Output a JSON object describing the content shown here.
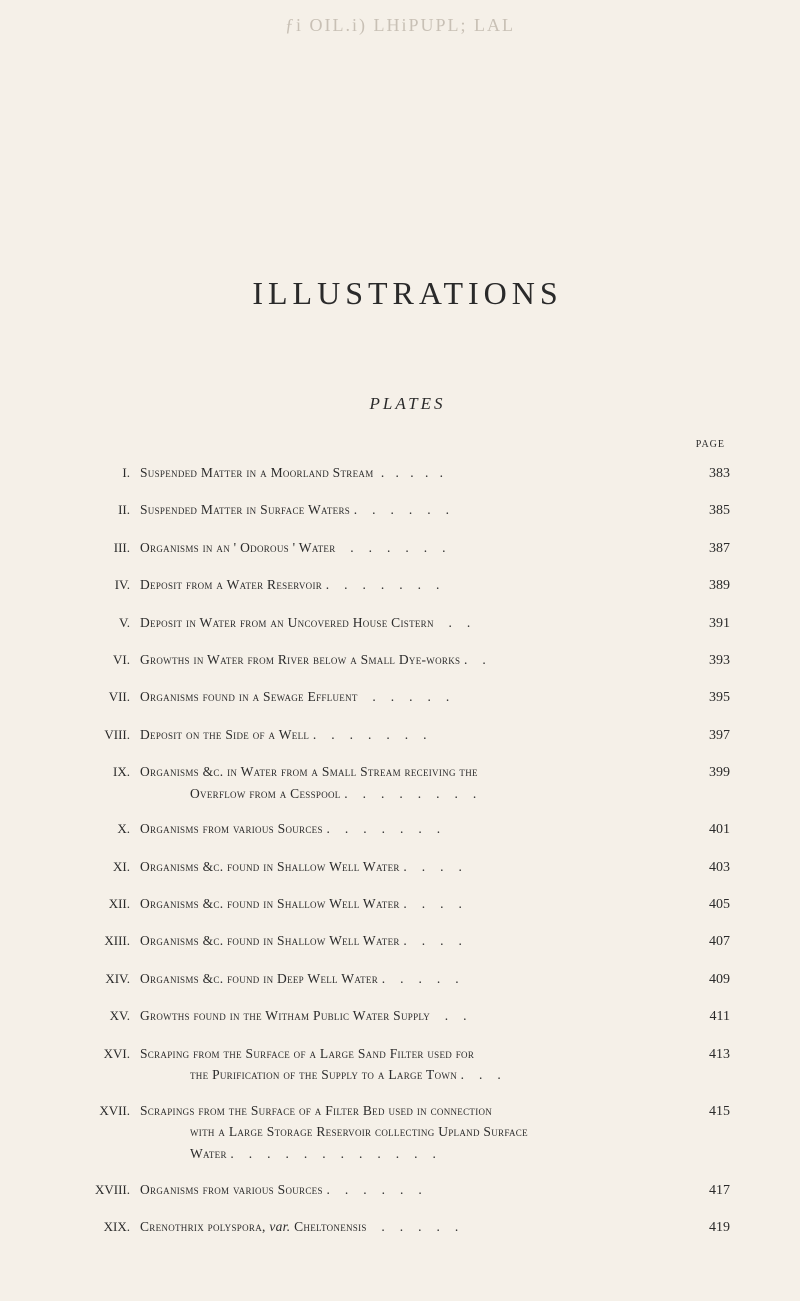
{
  "faded_header_text": "ƒi OIL.i) LHiPUPL; LAL",
  "title": "ILLUSTRATIONS",
  "subtitle": "PLATES",
  "page_label": "PAGE",
  "entries": [
    {
      "roman": "I.",
      "desc": "Suspended Matter in a Moorland Stream",
      "page": "383"
    },
    {
      "roman": "II.",
      "desc": "Suspended Matter in Surface Waters",
      "page": "385"
    },
    {
      "roman": "III.",
      "desc": "Organisms in an ' Odorous ' Water",
      "page": "387"
    },
    {
      "roman": "IV.",
      "desc": "Deposit from a Water Reservoir",
      "page": "389"
    },
    {
      "roman": "V.",
      "desc": "Deposit in Water from an Uncovered House Cistern",
      "page": "391"
    },
    {
      "roman": "VI.",
      "desc": "Growths in Water from River below a Small Dye-works",
      "page": "393"
    },
    {
      "roman": "VII.",
      "desc": "Organisms found in a Sewage Effluent",
      "page": "395"
    },
    {
      "roman": "VIII.",
      "desc": "Deposit on the Side of a Well",
      "page": "397"
    },
    {
      "roman": "IX.",
      "desc": "Organisms &c. in Water from a Small Stream receiving the",
      "cont": "Overflow from a Cesspool",
      "page": "399"
    },
    {
      "roman": "X.",
      "desc": "Organisms from various Sources",
      "page": "401"
    },
    {
      "roman": "XI.",
      "desc": "Organisms &c. found in Shallow Well Water",
      "page": "403"
    },
    {
      "roman": "XII.",
      "desc": "Organisms &c. found in Shallow Well Water",
      "page": "405"
    },
    {
      "roman": "XIII.",
      "desc": "Organisms &c. found in Shallow Well Water",
      "page": "407"
    },
    {
      "roman": "XIV.",
      "desc": "Organisms &c. found in Deep Well Water",
      "page": "409"
    },
    {
      "roman": "XV.",
      "desc": "Growths found in the Witham Public Water Supply",
      "page": "411"
    },
    {
      "roman": "XVI.",
      "desc": "Scraping from the Surface of a Large Sand Filter used for",
      "cont": "the Purification of the Supply to a Large Town",
      "page": "413"
    },
    {
      "roman": "XVII.",
      "desc": "Scrapings from the Surface of a Filter Bed used in connection",
      "cont": "with a Large Storage Reservoir collecting Upland Surface",
      "cont2": "Water",
      "page": "415"
    },
    {
      "roman": "XVIII.",
      "desc": "Organisms from various Sources",
      "page": "417"
    },
    {
      "roman": "XIX.",
      "desc_special": true,
      "desc_part1": "Crenothrix polyspora, ",
      "desc_italic": "var.",
      "desc_part2": " Cheltonensis",
      "page": "419"
    }
  ],
  "colors": {
    "background": "#f5f0e8",
    "text": "#2a2a2a",
    "faded": "#c8c0b5"
  },
  "typography": {
    "title_size": 32,
    "subtitle_size": 17,
    "entry_size": 13.5,
    "page_num_size": 14
  }
}
